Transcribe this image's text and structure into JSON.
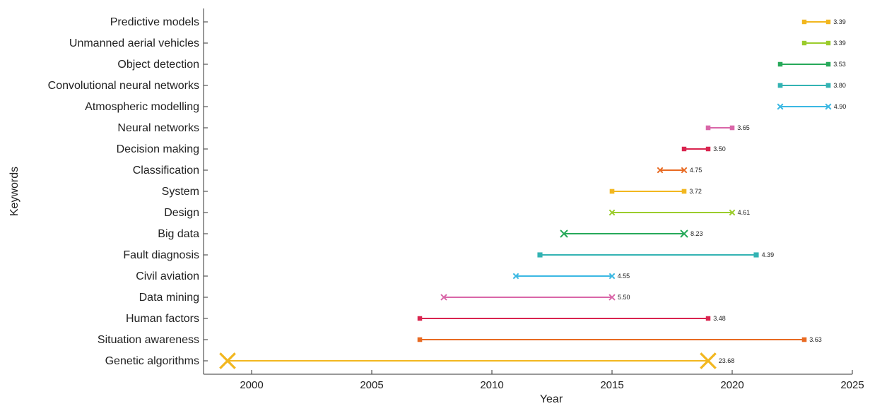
{
  "chart_data": {
    "type": "range",
    "title": "",
    "xlabel": "Year",
    "ylabel": "Keywords",
    "xlim": [
      1998,
      2025
    ],
    "xticks": [
      2000,
      2005,
      2010,
      2015,
      2020,
      2025
    ],
    "grid": false,
    "series": [
      {
        "keyword": "Predictive models",
        "begin": 2023,
        "end": 2024,
        "strength": "3.39",
        "color": "#f2b71f"
      },
      {
        "keyword": "Unmanned aerial vehicles",
        "begin": 2023,
        "end": 2024,
        "strength": "3.39",
        "color": "#9bcc2c"
      },
      {
        "keyword": "Object detection",
        "begin": 2022,
        "end": 2024,
        "strength": "3.53",
        "color": "#27a95a"
      },
      {
        "keyword": "Convolutional neural networks",
        "begin": 2022,
        "end": 2024,
        "strength": "3.80",
        "color": "#33b3b3"
      },
      {
        "keyword": "Atmospheric modelling",
        "begin": 2022,
        "end": 2024,
        "strength": "4.90",
        "color": "#3bb8e3"
      },
      {
        "keyword": "Neural networks",
        "begin": 2019,
        "end": 2020,
        "strength": "3.65",
        "color": "#d966a8"
      },
      {
        "keyword": "Decision making",
        "begin": 2018,
        "end": 2019,
        "strength": "3.50",
        "color": "#d9244f"
      },
      {
        "keyword": "Classification",
        "begin": 2017,
        "end": 2018,
        "strength": "4.75",
        "color": "#e86a22"
      },
      {
        "keyword": "System",
        "begin": 2015,
        "end": 2018,
        "strength": "3.72",
        "color": "#f2b71f"
      },
      {
        "keyword": "Design",
        "begin": 2015,
        "end": 2020,
        "strength": "4.61",
        "color": "#9bcc2c"
      },
      {
        "keyword": "Big data",
        "begin": 2013,
        "end": 2018,
        "strength": "8.23",
        "color": "#27a95a"
      },
      {
        "keyword": "Fault diagnosis",
        "begin": 2012,
        "end": 2021,
        "strength": "4.39",
        "color": "#33b3b3"
      },
      {
        "keyword": "Civil aviation",
        "begin": 2011,
        "end": 2015,
        "strength": "4.55",
        "color": "#3bb8e3"
      },
      {
        "keyword": "Data mining",
        "begin": 2008,
        "end": 2015,
        "strength": "5.50",
        "color": "#d966a8"
      },
      {
        "keyword": "Human factors",
        "begin": 2007,
        "end": 2019,
        "strength": "3.48",
        "color": "#d9244f"
      },
      {
        "keyword": "Situation awareness",
        "begin": 2007,
        "end": 2023,
        "strength": "3.63",
        "color": "#e86a22"
      },
      {
        "keyword": "Genetic algorithms",
        "begin": 1999,
        "end": 2019,
        "strength": "23.68",
        "color": "#f2b71f"
      }
    ]
  }
}
